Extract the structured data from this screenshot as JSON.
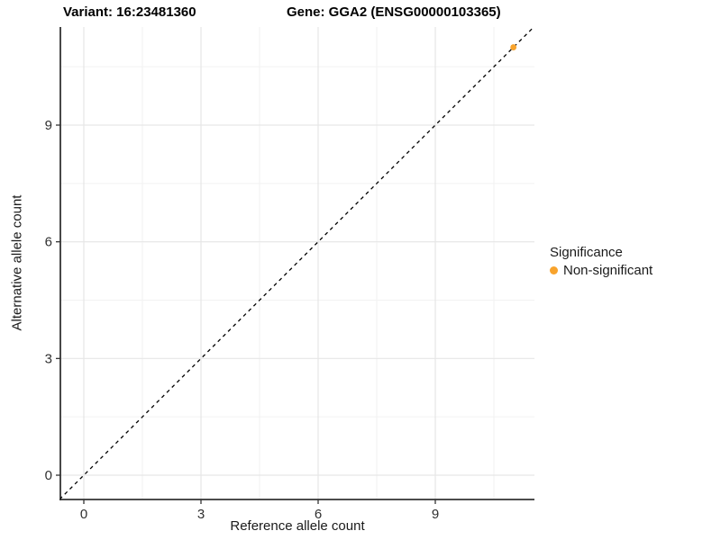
{
  "titles": {
    "variant": "Variant: 16:23481360",
    "gene": "Gene: GGA2 (ENSG00000103365)"
  },
  "chart_data": {
    "type": "scatter",
    "xlabel": "Reference allele count",
    "ylabel": "Alternative allele count",
    "x_ticks": [
      0,
      3,
      6,
      9
    ],
    "y_ticks": [
      0,
      3,
      6,
      9
    ],
    "x_minor_ticks": [
      1.5,
      4.5,
      7.5,
      10.5
    ],
    "y_minor_ticks": [
      1.5,
      4.5,
      7.5,
      10.5
    ],
    "xlim": [
      -0.62,
      11.55
    ],
    "ylim": [
      -0.62,
      11.55
    ],
    "grid": "major+minor",
    "legend_position": "right",
    "identity_line": {
      "style": "dashed",
      "from": [
        -0.62,
        -0.62
      ],
      "to": [
        11.6,
        11.6
      ]
    },
    "series": [
      {
        "name": "Non-significant",
        "points": [
          {
            "x": 11,
            "y": 11
          }
        ]
      }
    ]
  },
  "legend": {
    "title": "Significance",
    "items": [
      {
        "label": "Non-significant",
        "color": "#F8A32C"
      }
    ]
  },
  "colors": {
    "point": "#F8A32C",
    "grid_major": "#E6E6E6",
    "grid_minor": "#F2F2F2",
    "axis_line": "#333333",
    "tick_mark": "#333333",
    "tick_label": "#303030",
    "identity_line": "#000000"
  }
}
